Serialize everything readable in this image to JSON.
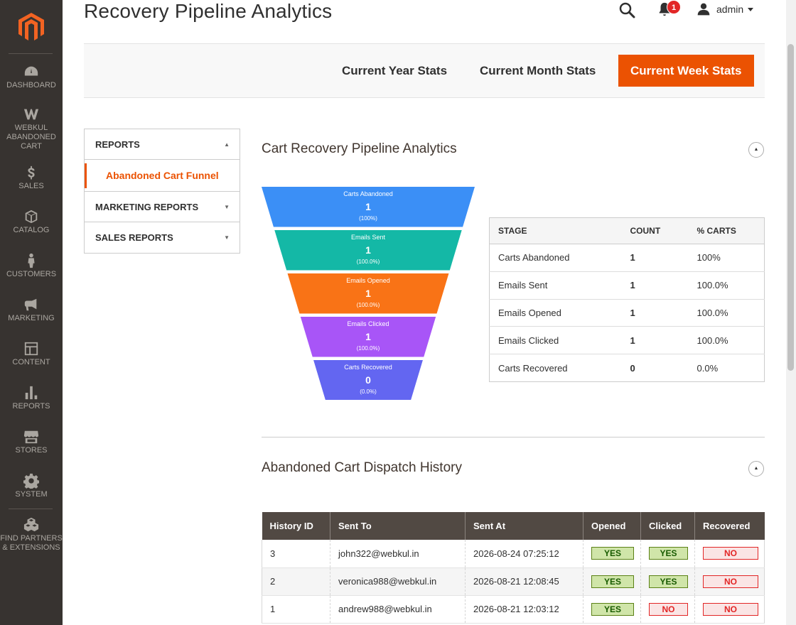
{
  "sidebar": {
    "items": [
      {
        "label": "DASHBOARD",
        "icon": "dashboard-icon"
      },
      {
        "label": "WEBKUL ABANDONED CART",
        "icon": "webkul-icon"
      },
      {
        "label": "SALES",
        "icon": "dollar-icon"
      },
      {
        "label": "CATALOG",
        "icon": "box-icon"
      },
      {
        "label": "CUSTOMERS",
        "icon": "person-icon"
      },
      {
        "label": "MARKETING",
        "icon": "megaphone-icon"
      },
      {
        "label": "CONTENT",
        "icon": "layout-icon"
      },
      {
        "label": "REPORTS",
        "icon": "bar-chart-icon"
      },
      {
        "label": "STORES",
        "icon": "store-icon"
      },
      {
        "label": "SYSTEM",
        "icon": "gear-icon"
      },
      {
        "label": "FIND PARTNERS & EXTENSIONS",
        "icon": "cubes-icon"
      }
    ]
  },
  "header": {
    "title": "Recovery Pipeline Analytics",
    "notifications_count": "1",
    "user_name": "admin"
  },
  "stats_tabs": {
    "year": "Current Year Stats",
    "month": "Current Month Stats",
    "week": "Current Week Stats",
    "active": "week"
  },
  "reports_menu": {
    "reports": "REPORTS",
    "funnel": "Abandoned Cart Funnel",
    "marketing": "MARKETING REPORTS",
    "sales": "SALES REPORTS"
  },
  "pipeline": {
    "title": "Cart Recovery Pipeline Analytics",
    "table_headers": {
      "stage": "STAGE",
      "count": "COUNT",
      "pct": "% CARTS"
    },
    "stages": [
      {
        "name": "Carts Abandoned",
        "count": "1",
        "pct": "100%",
        "funnel_pct": "(100%)",
        "color": "#3b8ff6"
      },
      {
        "name": "Emails Sent",
        "count": "1",
        "pct": "100.0%",
        "funnel_pct": "(100.0%)",
        "color": "#14b8a6"
      },
      {
        "name": "Emails Opened",
        "count": "1",
        "pct": "100.0%",
        "funnel_pct": "(100.0%)",
        "color": "#f97316"
      },
      {
        "name": "Emails Clicked",
        "count": "1",
        "pct": "100.0%",
        "funnel_pct": "(100.0%)",
        "color": "#a855f7"
      },
      {
        "name": "Carts Recovered",
        "count": "0",
        "pct": "0.0%",
        "funnel_pct": "(0.0%)",
        "color": "#6366f1"
      }
    ]
  },
  "history": {
    "title": "Abandoned Cart Dispatch History",
    "headers": [
      "History ID",
      "Sent To",
      "Sent At",
      "Opened",
      "Clicked",
      "Recovered"
    ],
    "rows": [
      {
        "id": "3",
        "to": "john322@webkul.in",
        "at": "2026-08-24 07:25:12",
        "opened": "YES",
        "clicked": "YES",
        "recovered": "NO"
      },
      {
        "id": "2",
        "to": "veronica988@webkul.in",
        "at": "2026-08-21 12:08:45",
        "opened": "YES",
        "clicked": "YES",
        "recovered": "NO"
      },
      {
        "id": "1",
        "to": "andrew988@webkul.in",
        "at": "2026-08-21 12:03:12",
        "opened": "YES",
        "clicked": "NO",
        "recovered": "NO"
      }
    ]
  }
}
